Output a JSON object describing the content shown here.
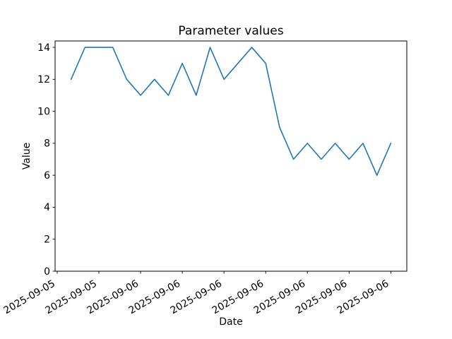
{
  "chart_data": {
    "type": "line",
    "title": "Parameter values",
    "xlabel": "Date",
    "ylabel": "Value",
    "series": [
      {
        "name": "parameter-values",
        "color": "#1f77b4",
        "x_hours": [
          0,
          1,
          2,
          3,
          4,
          5,
          6,
          7,
          8,
          9,
          10,
          11,
          12,
          13,
          14,
          15,
          16,
          17,
          18,
          19,
          20,
          21,
          22,
          23
        ],
        "values": [
          12,
          14,
          14,
          14,
          12,
          11,
          12,
          11,
          13,
          11,
          14,
          12,
          13,
          14,
          13,
          9,
          7,
          8,
          7,
          8,
          7,
          8,
          6,
          8
        ]
      }
    ],
    "x_ticks": [
      {
        "hour": -1,
        "label": "2025-09-05"
      },
      {
        "hour": 2,
        "label": "2025-09-05"
      },
      {
        "hour": 5,
        "label": "2025-09-06"
      },
      {
        "hour": 8,
        "label": "2025-09-06"
      },
      {
        "hour": 11,
        "label": "2025-09-06"
      },
      {
        "hour": 14,
        "label": "2025-09-06"
      },
      {
        "hour": 17,
        "label": "2025-09-06"
      },
      {
        "hour": 20,
        "label": "2025-09-06"
      },
      {
        "hour": 23,
        "label": "2025-09-06"
      }
    ],
    "x_tick_rotation_deg": 30,
    "y_ticks": [
      0,
      2,
      4,
      6,
      8,
      10,
      12,
      14
    ],
    "ylim": [
      0,
      14.4
    ],
    "xlim_hours": [
      -1.15,
      24.15
    ],
    "grid": false,
    "axis_color": "#000000",
    "background_color": "#ffffff"
  }
}
